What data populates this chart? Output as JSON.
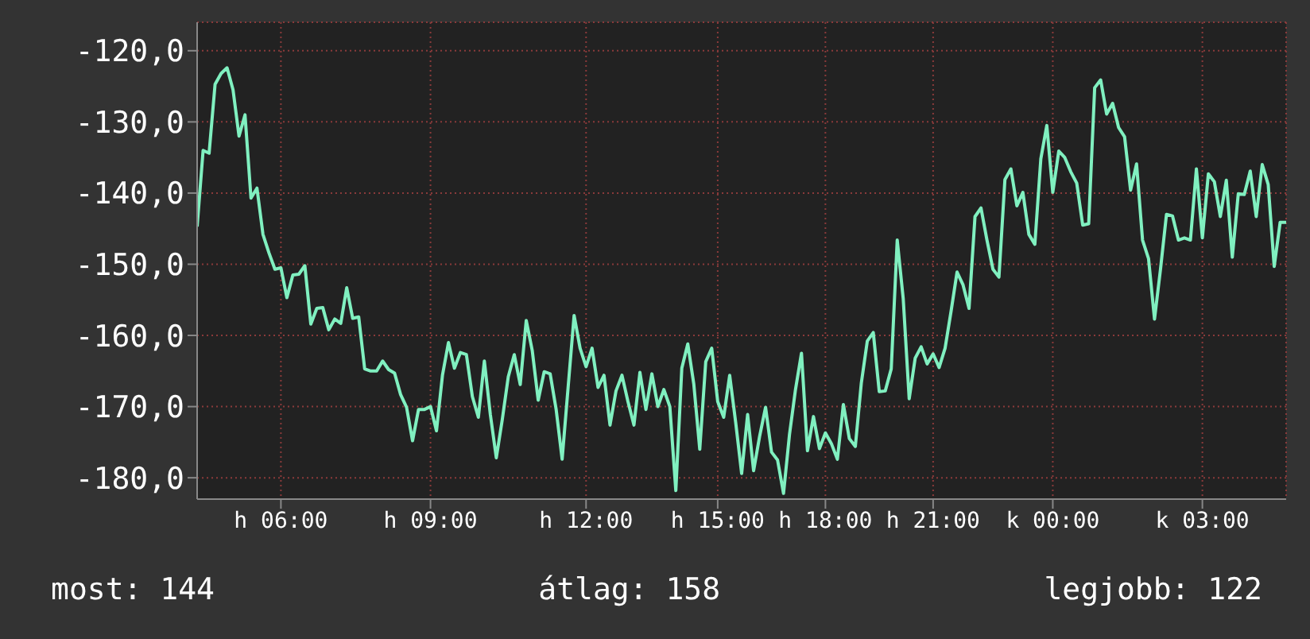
{
  "chart_data": {
    "type": "line",
    "marker": "none",
    "grid": true,
    "legend": false,
    "categories": [
      null,
      null,
      null,
      null,
      null,
      null,
      null,
      null,
      null,
      null,
      null,
      null,
      null,
      null,
      "h 06:00",
      null,
      null,
      null,
      null,
      null,
      null,
      null,
      null,
      null,
      null,
      null,
      null,
      null,
      null,
      null,
      null,
      null,
      null,
      null,
      null,
      null,
      null,
      null,
      null,
      "h 09:00",
      null,
      null,
      null,
      null,
      null,
      null,
      null,
      null,
      null,
      null,
      null,
      null,
      null,
      null,
      null,
      null,
      null,
      null,
      null,
      null,
      null,
      null,
      null,
      null,
      null,
      "h 12:00",
      null,
      null,
      null,
      null,
      null,
      null,
      null,
      null,
      null,
      null,
      null,
      null,
      null,
      null,
      null,
      null,
      null,
      null,
      null,
      null,
      null,
      "h 15:00",
      null,
      null,
      null,
      null,
      null,
      null,
      null,
      null,
      null,
      null,
      null,
      null,
      null,
      null,
      null,
      null,
      null,
      "h 18:00",
      null,
      null,
      null,
      null,
      null,
      null,
      null,
      null,
      null,
      null,
      null,
      null,
      null,
      null,
      null,
      null,
      null,
      "h 21:00",
      null,
      null,
      null,
      null,
      null,
      null,
      null,
      null,
      null,
      null,
      null,
      null,
      null,
      null,
      null,
      null,
      null,
      null,
      null,
      "k 00:00",
      null,
      null,
      null,
      null,
      null,
      null,
      null,
      null,
      null,
      null,
      null,
      null,
      null,
      null,
      null,
      null,
      null,
      null,
      null,
      null,
      null,
      null,
      null,
      null,
      "k 03:00",
      null,
      null,
      null,
      null,
      null,
      null,
      null,
      null,
      null,
      null,
      null,
      null,
      null,
      null
    ],
    "ylim": [
      -183,
      -116
    ],
    "yticks": [
      {
        "value": -180,
        "label": "-180,0"
      },
      {
        "value": -170,
        "label": "-170,0"
      },
      {
        "value": -160,
        "label": "-160,0"
      },
      {
        "value": -150,
        "label": "-150,0"
      },
      {
        "value": -140,
        "label": "-140,0"
      },
      {
        "value": -130,
        "label": "-130,0"
      },
      {
        "value": -120,
        "label": "-120,0"
      }
    ],
    "annotations": [
      "most: 144",
      "átlag: 158",
      "legjobb: 122"
    ],
    "series": [
      {
        "color": "#80f0c0",
        "values": [
          -144.7,
          -134,
          -134.4,
          -124.7,
          -123.2,
          -122.4,
          -125.5,
          -132,
          -129,
          -140.7,
          -139.3,
          -145.8,
          -148.4,
          -150.7,
          -150.5,
          -154.7,
          -151.5,
          -151.4,
          -150.2,
          -158.4,
          -156.2,
          -156.1,
          -159.2,
          -157.7,
          -158.3,
          -153.3,
          -157.6,
          -157.4,
          -164.7,
          -165,
          -165,
          -163.6,
          -164.8,
          -165.3,
          -168.3,
          -170.1,
          -174.8,
          -170.4,
          -170.4,
          -170,
          -173.4,
          -165.6,
          -161,
          -164.6,
          -162.4,
          -162.7,
          -168.6,
          -171.5,
          -163.6,
          -171.1,
          -177.2,
          -171.8,
          -165.8,
          -162.7,
          -166.9,
          -157.9,
          -162.1,
          -169.1,
          -165.1,
          -165.4,
          -170.4,
          -177.4,
          -167.3,
          -157.2,
          -161.8,
          -164.4,
          -161.8,
          -167.3,
          -165.6,
          -172.6,
          -167.8,
          -165.6,
          -169.3,
          -172.6,
          -165.2,
          -170.4,
          -165.4,
          -170,
          -167.6,
          -170,
          -181.8,
          -164.6,
          -161.2,
          -166.8,
          -176,
          -163.7,
          -161.8,
          -169.3,
          -171.5,
          -165.6,
          -172.2,
          -179.4,
          -171.1,
          -179,
          -174.2,
          -170.1,
          -176.4,
          -177.5,
          -182.2,
          -173.9,
          -167.6,
          -162.5,
          -176.2,
          -171.4,
          -175.9,
          -173.7,
          -175.2,
          -177.4,
          -169.7,
          -174.5,
          -175.6,
          -166.7,
          -160.8,
          -159.6,
          -167.9,
          -167.8,
          -164.7,
          -146.6,
          -154.8,
          -168.9,
          -163.2,
          -161.6,
          -164,
          -162.6,
          -164.5,
          -161.8,
          -156.6,
          -151.1,
          -152.9,
          -156.2,
          -143.3,
          -142.1,
          -146.6,
          -150.7,
          -151.8,
          -138.1,
          -136.6,
          -141.8,
          -139.9,
          -145.8,
          -147.2,
          -135.2,
          -130.5,
          -139.9,
          -134.1,
          -135,
          -137,
          -138.6,
          -144.5,
          -144.3,
          -125.2,
          -124.1,
          -128.9,
          -127.4,
          -130.8,
          -132.1,
          -139.6,
          -135.9,
          -146.6,
          -149.2,
          -157.7,
          -150.7,
          -143,
          -143.2,
          -146.6,
          -146.3,
          -146.6,
          -136.6,
          -146.3,
          -137.3,
          -138.4,
          -143.3,
          -138.2,
          -149,
          -140.1,
          -140.2,
          -136.9,
          -143.3,
          -136,
          -138.8,
          -150.3,
          -144.1,
          -144.1
        ]
      }
    ]
  }
}
